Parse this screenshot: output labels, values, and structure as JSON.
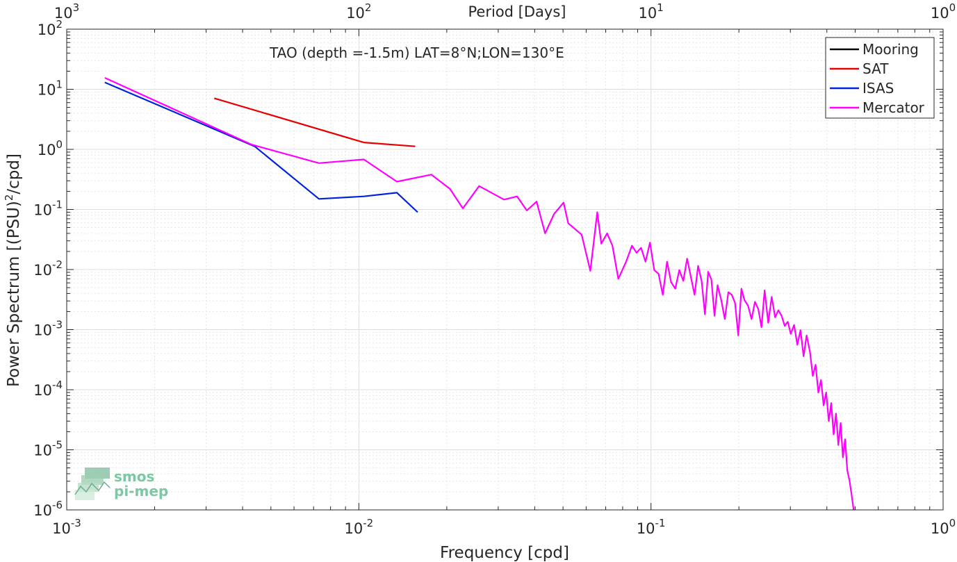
{
  "chart_data": {
    "type": "line",
    "title": "TAO (depth =-1.5m) LAT=8°N;LON=130°E",
    "xlabel": "Frequency [cpd]",
    "ylabel": "Power Spectrum [(PSU)",
    "ylabel_sup": "2",
    "ylabel_tail": "/cpd]",
    "top_xlabel": "Period [Days]",
    "xscale": "log",
    "yscale": "log",
    "xlim": [
      0.001,
      1
    ],
    "ylim": [
      1e-06,
      100
    ],
    "grid": true,
    "legend_position": "top-right",
    "x_ticks": [
      {
        "value": 0.001,
        "base": "10",
        "exp": "-3"
      },
      {
        "value": 0.01,
        "base": "10",
        "exp": "-2"
      },
      {
        "value": 0.1,
        "base": "10",
        "exp": "-1"
      },
      {
        "value": 1,
        "base": "10",
        "exp": "0"
      }
    ],
    "top_x_ticks": [
      {
        "value": 0.001,
        "base": "10",
        "exp": "3"
      },
      {
        "value": 0.01,
        "base": "10",
        "exp": "2"
      },
      {
        "value": 0.1,
        "base": "10",
        "exp": "1"
      },
      {
        "value": 1,
        "base": "10",
        "exp": "0"
      }
    ],
    "y_ticks": [
      {
        "value": 100,
        "base": "10",
        "exp": "2"
      },
      {
        "value": 10,
        "base": "10",
        "exp": "1"
      },
      {
        "value": 1,
        "base": "10",
        "exp": "0"
      },
      {
        "value": 0.1,
        "base": "10",
        "exp": "-1"
      },
      {
        "value": 0.01,
        "base": "10",
        "exp": "-2"
      },
      {
        "value": 0.001,
        "base": "10",
        "exp": "-3"
      },
      {
        "value": 0.0001,
        "base": "10",
        "exp": "-4"
      },
      {
        "value": 1e-05,
        "base": "10",
        "exp": "-5"
      },
      {
        "value": 1e-06,
        "base": "10",
        "exp": "-6"
      }
    ],
    "series": [
      {
        "name": "Mooring",
        "color": "#000000",
        "x": [],
        "y": []
      },
      {
        "name": "SAT",
        "color": "#e60000",
        "x": [
          0.0032,
          0.0104,
          0.0156
        ],
        "y": [
          7.1,
          1.3,
          1.12
        ]
      },
      {
        "name": "ISAS",
        "color": "#0022dd",
        "x": [
          0.00135,
          0.0044,
          0.0073,
          0.0104,
          0.0135,
          0.0159
        ],
        "y": [
          13,
          1.12,
          0.15,
          0.165,
          0.19,
          0.09
        ]
      },
      {
        "name": "Mercator",
        "color": "#ff00ff",
        "x": [
          0.00135,
          0.0043,
          0.0073,
          0.0104,
          0.0135,
          0.0177,
          0.0205,
          0.0227,
          0.0258,
          0.0314,
          0.0348,
          0.0376,
          0.0406,
          0.0434,
          0.0466,
          0.0502,
          0.0521,
          0.0579,
          0.062,
          0.0655,
          0.0676,
          0.0708,
          0.0738,
          0.0773,
          0.0822,
          0.0861,
          0.0893,
          0.0925,
          0.0958,
          0.0992,
          0.1026,
          0.1062,
          0.1098,
          0.1135,
          0.1172,
          0.1211,
          0.125,
          0.129,
          0.133,
          0.137,
          0.141,
          0.145,
          0.149,
          0.153,
          0.157,
          0.161,
          0.165,
          0.169,
          0.174,
          0.179,
          0.184,
          0.189,
          0.194,
          0.199,
          0.204,
          0.209,
          0.215,
          0.221,
          0.227,
          0.233,
          0.239,
          0.245,
          0.252,
          0.259,
          0.266,
          0.273,
          0.28,
          0.287,
          0.294,
          0.301,
          0.309,
          0.317,
          0.325,
          0.333,
          0.341,
          0.35,
          0.358,
          0.366,
          0.374,
          0.382,
          0.39,
          0.398,
          0.406,
          0.414,
          0.422,
          0.43,
          0.438,
          0.446,
          0.454,
          0.462,
          0.47,
          0.478,
          0.486,
          0.494
        ],
        "y": [
          15.5,
          1.2,
          0.59,
          0.68,
          0.29,
          0.38,
          0.22,
          0.104,
          0.245,
          0.146,
          0.165,
          0.096,
          0.135,
          0.04,
          0.084,
          0.13,
          0.059,
          0.038,
          0.0095,
          0.09,
          0.027,
          0.04,
          0.025,
          0.007,
          0.0135,
          0.025,
          0.019,
          0.023,
          0.0135,
          0.028,
          0.0098,
          0.0085,
          0.0038,
          0.0135,
          0.0062,
          0.0048,
          0.0098,
          0.0065,
          0.0152,
          0.0075,
          0.0038,
          0.0115,
          0.0065,
          0.0018,
          0.0092,
          0.0068,
          0.0017,
          0.0055,
          0.0031,
          0.0015,
          0.0042,
          0.0038,
          0.0028,
          0.0008,
          0.0048,
          0.0031,
          0.0025,
          0.0015,
          0.0029,
          0.0022,
          0.0011,
          0.0045,
          0.0013,
          0.0035,
          0.0016,
          0.0021,
          0.0017,
          0.00115,
          0.00135,
          0.00085,
          0.0012,
          0.00056,
          0.00098,
          0.00036,
          0.0008,
          0.00043,
          0.00017,
          0.00026,
          9e-05,
          0.000145,
          5.5e-05,
          9e-05,
          3e-05,
          6e-05,
          1.8e-05,
          4e-05,
          1.2e-05,
          2.8e-05,
          7.5e-06,
          1.5e-05,
          4.5e-06,
          3.1e-06,
          1.8e-06,
          1e-06
        ]
      }
    ]
  },
  "watermark": {
    "line1": "smos",
    "line2": "pi-mep",
    "icon": "smos-pimep-logo-icon"
  }
}
